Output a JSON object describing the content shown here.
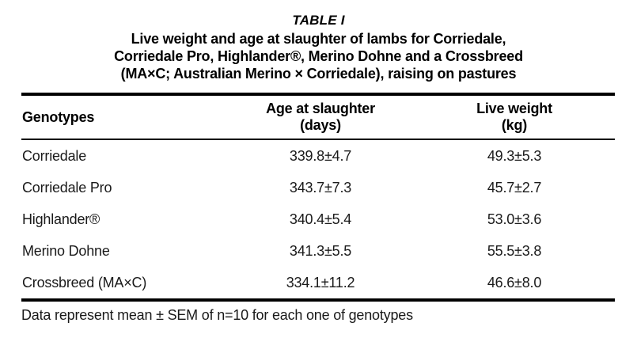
{
  "caption": {
    "label": "TABLE I",
    "lines": [
      "Live weight and age at slaughter of lambs for Corriedale,",
      "Corriedale Pro, Highlander®, Merino Dohne and a Crossbreed",
      "(MA×C; Australian Merino × Corriedale), raising on pastures"
    ]
  },
  "table": {
    "columns": [
      {
        "label": "Genotypes",
        "sub": ""
      },
      {
        "label": "Age at slaughter",
        "sub": "(days)"
      },
      {
        "label": "Live weight",
        "sub": "(kg)"
      }
    ],
    "rows": [
      {
        "genotype": "Corriedale",
        "age": "339.8±4.7",
        "weight": "49.3±5.3"
      },
      {
        "genotype": "Corriedale Pro",
        "age": "343.7±7.3",
        "weight": "45.7±2.7"
      },
      {
        "genotype": "Highlander®",
        "age": "340.4±5.4",
        "weight": "53.0±3.6"
      },
      {
        "genotype": "Merino Dohne",
        "age": "341.3±5.5",
        "weight": "55.5±3.8"
      },
      {
        "genotype": "Crossbreed (MA×C)",
        "age": "334.1±11.2",
        "weight": "46.6±8.0"
      }
    ]
  },
  "footnote": "Data represent mean ± SEM of n=10 for each one of genotypes",
  "colors": {
    "text": "#1a1a1a",
    "heading": "#000000",
    "rule": "#000000",
    "background": "#ffffff"
  }
}
